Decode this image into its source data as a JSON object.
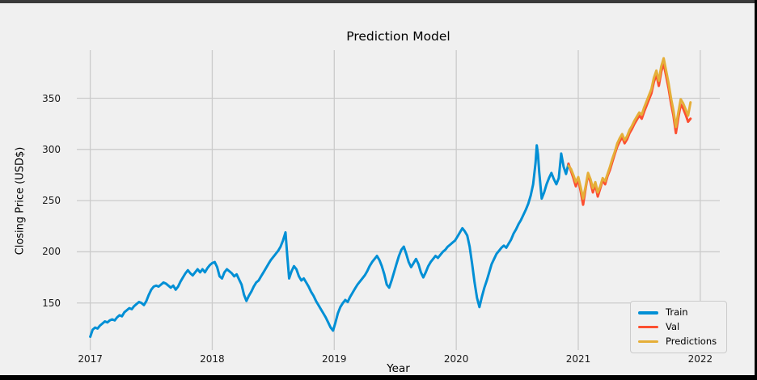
{
  "figure": {
    "title": "Prediction Model",
    "x_axis_label": "Year",
    "y_axis_label": "Closing Price (USD$)"
  },
  "colors": {
    "background": "#f0f0f0",
    "grid": "#cbcbcb",
    "tick_text": "#1a1a1a",
    "train": "#008fd5",
    "val": "#fc4f30",
    "predictions": "#e5ae38",
    "window_border": "#000000"
  },
  "chart_data": {
    "type": "line",
    "title": "Prediction Model",
    "xlabel": "Year",
    "ylabel": "Closing Price (USD$)",
    "xlim": [
      2016.89,
      2022.16
    ],
    "ylim": [
      104,
      397
    ],
    "x_ticks": [
      2017,
      2018,
      2019,
      2020,
      2021,
      2022
    ],
    "y_ticks": [
      150,
      200,
      250,
      300,
      350
    ],
    "grid": true,
    "legend_position": "lower right",
    "series": [
      {
        "name": "Train",
        "color": "#008fd5",
        "points": [
          [
            2017.0,
            117
          ],
          [
            2017.02,
            124
          ],
          [
            2017.04,
            126
          ],
          [
            2017.06,
            125
          ],
          [
            2017.08,
            128
          ],
          [
            2017.1,
            130
          ],
          [
            2017.12,
            132
          ],
          [
            2017.14,
            131
          ],
          [
            2017.16,
            133
          ],
          [
            2017.18,
            134
          ],
          [
            2017.2,
            133
          ],
          [
            2017.22,
            136
          ],
          [
            2017.24,
            138
          ],
          [
            2017.26,
            137
          ],
          [
            2017.28,
            141
          ],
          [
            2017.3,
            143
          ],
          [
            2017.32,
            145
          ],
          [
            2017.34,
            144
          ],
          [
            2017.36,
            147
          ],
          [
            2017.38,
            149
          ],
          [
            2017.4,
            151
          ],
          [
            2017.42,
            150
          ],
          [
            2017.44,
            148
          ],
          [
            2017.46,
            152
          ],
          [
            2017.48,
            158
          ],
          [
            2017.5,
            163
          ],
          [
            2017.52,
            166
          ],
          [
            2017.54,
            167
          ],
          [
            2017.56,
            166
          ],
          [
            2017.58,
            168
          ],
          [
            2017.6,
            170
          ],
          [
            2017.62,
            169
          ],
          [
            2017.64,
            167
          ],
          [
            2017.66,
            165
          ],
          [
            2017.68,
            167
          ],
          [
            2017.7,
            163
          ],
          [
            2017.72,
            166
          ],
          [
            2017.74,
            171
          ],
          [
            2017.76,
            175
          ],
          [
            2017.78,
            179
          ],
          [
            2017.8,
            182
          ],
          [
            2017.82,
            179
          ],
          [
            2017.84,
            177
          ],
          [
            2017.86,
            180
          ],
          [
            2017.88,
            183
          ],
          [
            2017.9,
            180
          ],
          [
            2017.92,
            183
          ],
          [
            2017.94,
            180
          ],
          [
            2017.96,
            184
          ],
          [
            2017.98,
            187
          ],
          [
            2018.0,
            189
          ],
          [
            2018.02,
            190
          ],
          [
            2018.04,
            185
          ],
          [
            2018.06,
            176
          ],
          [
            2018.08,
            174
          ],
          [
            2018.1,
            180
          ],
          [
            2018.12,
            183
          ],
          [
            2018.14,
            181
          ],
          [
            2018.16,
            179
          ],
          [
            2018.18,
            176
          ],
          [
            2018.2,
            178
          ],
          [
            2018.22,
            173
          ],
          [
            2018.24,
            168
          ],
          [
            2018.26,
            158
          ],
          [
            2018.28,
            152
          ],
          [
            2018.3,
            157
          ],
          [
            2018.32,
            161
          ],
          [
            2018.34,
            166
          ],
          [
            2018.36,
            170
          ],
          [
            2018.38,
            172
          ],
          [
            2018.4,
            176
          ],
          [
            2018.42,
            180
          ],
          [
            2018.44,
            184
          ],
          [
            2018.46,
            188
          ],
          [
            2018.48,
            192
          ],
          [
            2018.5,
            195
          ],
          [
            2018.52,
            198
          ],
          [
            2018.54,
            201
          ],
          [
            2018.56,
            205
          ],
          [
            2018.58,
            211
          ],
          [
            2018.6,
            219
          ],
          [
            2018.615,
            196
          ],
          [
            2018.63,
            174
          ],
          [
            2018.65,
            181
          ],
          [
            2018.67,
            186
          ],
          [
            2018.69,
            183
          ],
          [
            2018.71,
            176
          ],
          [
            2018.73,
            172
          ],
          [
            2018.75,
            174
          ],
          [
            2018.77,
            170
          ],
          [
            2018.79,
            166
          ],
          [
            2018.81,
            161
          ],
          [
            2018.83,
            157
          ],
          [
            2018.85,
            152
          ],
          [
            2018.87,
            148
          ],
          [
            2018.89,
            144
          ],
          [
            2018.91,
            140
          ],
          [
            2018.93,
            136
          ],
          [
            2018.95,
            131
          ],
          [
            2018.97,
            126
          ],
          [
            2018.99,
            123
          ],
          [
            2019.01,
            131
          ],
          [
            2019.03,
            140
          ],
          [
            2019.05,
            146
          ],
          [
            2019.07,
            150
          ],
          [
            2019.09,
            153
          ],
          [
            2019.11,
            151
          ],
          [
            2019.13,
            156
          ],
          [
            2019.15,
            160
          ],
          [
            2019.17,
            164
          ],
          [
            2019.19,
            168
          ],
          [
            2019.21,
            171
          ],
          [
            2019.23,
            174
          ],
          [
            2019.25,
            177
          ],
          [
            2019.27,
            181
          ],
          [
            2019.29,
            186
          ],
          [
            2019.31,
            190
          ],
          [
            2019.33,
            193
          ],
          [
            2019.35,
            196
          ],
          [
            2019.37,
            192
          ],
          [
            2019.39,
            186
          ],
          [
            2019.41,
            178
          ],
          [
            2019.43,
            168
          ],
          [
            2019.45,
            165
          ],
          [
            2019.47,
            172
          ],
          [
            2019.49,
            180
          ],
          [
            2019.51,
            188
          ],
          [
            2019.53,
            196
          ],
          [
            2019.55,
            202
          ],
          [
            2019.57,
            205
          ],
          [
            2019.59,
            198
          ],
          [
            2019.61,
            190
          ],
          [
            2019.63,
            185
          ],
          [
            2019.65,
            189
          ],
          [
            2019.67,
            193
          ],
          [
            2019.69,
            188
          ],
          [
            2019.71,
            180
          ],
          [
            2019.73,
            175
          ],
          [
            2019.75,
            180
          ],
          [
            2019.77,
            186
          ],
          [
            2019.79,
            190
          ],
          [
            2019.81,
            193
          ],
          [
            2019.83,
            196
          ],
          [
            2019.85,
            194
          ],
          [
            2019.87,
            197
          ],
          [
            2019.89,
            200
          ],
          [
            2019.91,
            202
          ],
          [
            2019.93,
            205
          ],
          [
            2019.95,
            207
          ],
          [
            2019.97,
            209
          ],
          [
            2019.99,
            211
          ],
          [
            2020.01,
            215
          ],
          [
            2020.03,
            219
          ],
          [
            2020.05,
            223
          ],
          [
            2020.07,
            220
          ],
          [
            2020.09,
            216
          ],
          [
            2020.11,
            205
          ],
          [
            2020.13,
            188
          ],
          [
            2020.15,
            170
          ],
          [
            2020.17,
            155
          ],
          [
            2020.19,
            146
          ],
          [
            2020.21,
            156
          ],
          [
            2020.23,
            165
          ],
          [
            2020.25,
            172
          ],
          [
            2020.27,
            180
          ],
          [
            2020.29,
            188
          ],
          [
            2020.31,
            193
          ],
          [
            2020.33,
            198
          ],
          [
            2020.35,
            201
          ],
          [
            2020.37,
            204
          ],
          [
            2020.39,
            206
          ],
          [
            2020.41,
            204
          ],
          [
            2020.43,
            208
          ],
          [
            2020.45,
            212
          ],
          [
            2020.47,
            218
          ],
          [
            2020.49,
            222
          ],
          [
            2020.51,
            227
          ],
          [
            2020.53,
            231
          ],
          [
            2020.55,
            236
          ],
          [
            2020.57,
            241
          ],
          [
            2020.59,
            247
          ],
          [
            2020.61,
            255
          ],
          [
            2020.63,
            266
          ],
          [
            2020.65,
            287
          ],
          [
            2020.66,
            304
          ],
          [
            2020.67,
            295
          ],
          [
            2020.68,
            278
          ],
          [
            2020.7,
            252
          ],
          [
            2020.72,
            258
          ],
          [
            2020.74,
            266
          ],
          [
            2020.76,
            272
          ],
          [
            2020.78,
            277
          ],
          [
            2020.8,
            271
          ],
          [
            2020.82,
            266
          ],
          [
            2020.84,
            272
          ],
          [
            2020.86,
            296
          ],
          [
            2020.88,
            283
          ],
          [
            2020.9,
            276
          ],
          [
            2020.92,
            286
          ]
        ]
      },
      {
        "name": "Val",
        "color": "#fc4f30",
        "points": [
          [
            2020.92,
            286
          ],
          [
            2020.94,
            279
          ],
          [
            2020.96,
            272
          ],
          [
            2020.98,
            264
          ],
          [
            2021.0,
            271
          ],
          [
            2021.02,
            259
          ],
          [
            2021.04,
            246
          ],
          [
            2021.06,
            262
          ],
          [
            2021.08,
            276
          ],
          [
            2021.1,
            268
          ],
          [
            2021.12,
            258
          ],
          [
            2021.14,
            266
          ],
          [
            2021.16,
            254
          ],
          [
            2021.18,
            262
          ],
          [
            2021.2,
            270
          ],
          [
            2021.22,
            266
          ],
          [
            2021.24,
            274
          ],
          [
            2021.26,
            280
          ],
          [
            2021.28,
            288
          ],
          [
            2021.3,
            296
          ],
          [
            2021.32,
            303
          ],
          [
            2021.34,
            308
          ],
          [
            2021.36,
            312
          ],
          [
            2021.38,
            306
          ],
          [
            2021.4,
            310
          ],
          [
            2021.42,
            316
          ],
          [
            2021.44,
            320
          ],
          [
            2021.46,
            325
          ],
          [
            2021.48,
            329
          ],
          [
            2021.5,
            333
          ],
          [
            2021.52,
            330
          ],
          [
            2021.54,
            337
          ],
          [
            2021.56,
            343
          ],
          [
            2021.58,
            349
          ],
          [
            2021.6,
            355
          ],
          [
            2021.62,
            366
          ],
          [
            2021.64,
            373
          ],
          [
            2021.66,
            362
          ],
          [
            2021.68,
            376
          ],
          [
            2021.7,
            384
          ],
          [
            2021.72,
            372
          ],
          [
            2021.74,
            360
          ],
          [
            2021.76,
            345
          ],
          [
            2021.78,
            333
          ],
          [
            2021.8,
            316
          ],
          [
            2021.82,
            331
          ],
          [
            2021.84,
            344
          ],
          [
            2021.86,
            340
          ],
          [
            2021.88,
            334
          ],
          [
            2021.9,
            327
          ],
          [
            2021.92,
            330
          ]
        ]
      },
      {
        "name": "Predictions",
        "color": "#e5ae38",
        "points": [
          [
            2020.92,
            284
          ],
          [
            2020.94,
            281
          ],
          [
            2020.96,
            275
          ],
          [
            2020.98,
            268
          ],
          [
            2021.0,
            273
          ],
          [
            2021.02,
            263
          ],
          [
            2021.04,
            252
          ],
          [
            2021.06,
            264
          ],
          [
            2021.08,
            277
          ],
          [
            2021.1,
            271
          ],
          [
            2021.12,
            262
          ],
          [
            2021.14,
            268
          ],
          [
            2021.16,
            258
          ],
          [
            2021.18,
            264
          ],
          [
            2021.2,
            272
          ],
          [
            2021.22,
            269
          ],
          [
            2021.24,
            276
          ],
          [
            2021.26,
            283
          ],
          [
            2021.28,
            291
          ],
          [
            2021.3,
            298
          ],
          [
            2021.32,
            306
          ],
          [
            2021.34,
            311
          ],
          [
            2021.36,
            315
          ],
          [
            2021.38,
            309
          ],
          [
            2021.4,
            313
          ],
          [
            2021.42,
            319
          ],
          [
            2021.44,
            323
          ],
          [
            2021.46,
            328
          ],
          [
            2021.48,
            332
          ],
          [
            2021.5,
            336
          ],
          [
            2021.52,
            334
          ],
          [
            2021.54,
            341
          ],
          [
            2021.56,
            347
          ],
          [
            2021.58,
            353
          ],
          [
            2021.6,
            359
          ],
          [
            2021.62,
            370
          ],
          [
            2021.64,
            377
          ],
          [
            2021.66,
            367
          ],
          [
            2021.68,
            381
          ],
          [
            2021.7,
            389
          ],
          [
            2021.72,
            377
          ],
          [
            2021.74,
            365
          ],
          [
            2021.76,
            350
          ],
          [
            2021.78,
            338
          ],
          [
            2021.8,
            322
          ],
          [
            2021.82,
            336
          ],
          [
            2021.84,
            349
          ],
          [
            2021.86,
            345
          ],
          [
            2021.88,
            339
          ],
          [
            2021.9,
            333
          ],
          [
            2021.92,
            346
          ]
        ]
      }
    ]
  }
}
